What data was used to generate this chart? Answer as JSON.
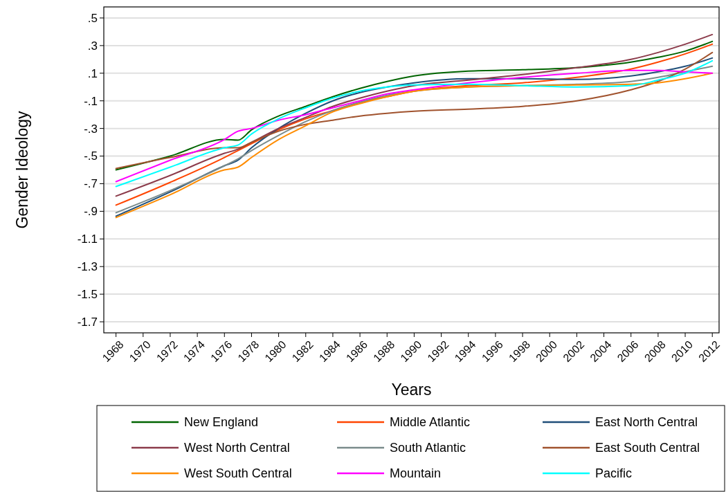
{
  "chart_data": {
    "type": "line",
    "xlabel": "Years",
    "ylabel": "Gender Ideology",
    "xlim": [
      1967.1,
      2012.5
    ],
    "ylim": [
      -1.78,
      0.58
    ],
    "xticks": [
      1968,
      1970,
      1972,
      1974,
      1976,
      1978,
      1980,
      1982,
      1984,
      1986,
      1988,
      1990,
      1992,
      1994,
      1996,
      1998,
      2000,
      2002,
      2004,
      2006,
      2008,
      2010,
      2012
    ],
    "yticks": [
      {
        "value": 0.5,
        "label": ".5"
      },
      {
        "value": 0.3,
        "label": ".3"
      },
      {
        "value": 0.1,
        "label": ".1"
      },
      {
        "value": -0.1,
        "label": "-.1"
      },
      {
        "value": -0.3,
        "label": "-.3"
      },
      {
        "value": -0.5,
        "label": "-.5"
      },
      {
        "value": -0.7,
        "label": "-.7"
      },
      {
        "value": -0.9,
        "label": "-.9"
      },
      {
        "value": -1.1,
        "label": "-1.1"
      },
      {
        "value": -1.3,
        "label": "-1.3"
      },
      {
        "value": -1.5,
        "label": "-1.5"
      },
      {
        "value": -1.7,
        "label": "-1.7"
      }
    ],
    "grid": "y",
    "legend": "bottom",
    "line_style": "solid",
    "x": [
      1968,
      1972,
      1976,
      1977,
      1978,
      1980,
      1982,
      1984,
      1986,
      1988,
      1990,
      1994,
      1998,
      2002,
      2006,
      2008,
      2010,
      2012
    ],
    "series": [
      {
        "name": "New England",
        "color": "#006400",
        "values": [
          -0.6,
          -0.5,
          -0.38,
          -0.385,
          -0.31,
          -0.21,
          -0.14,
          -0.07,
          -0.01,
          0.04,
          0.08,
          0.115,
          0.125,
          0.14,
          0.18,
          0.215,
          0.26,
          0.33
        ]
      },
      {
        "name": "Middle Atlantic",
        "color": "#ff4500",
        "values": [
          -0.855,
          -0.69,
          -0.51,
          -0.46,
          -0.41,
          -0.31,
          -0.23,
          -0.17,
          -0.11,
          -0.07,
          -0.03,
          0.01,
          0.03,
          0.07,
          0.13,
          0.18,
          0.24,
          0.31
        ]
      },
      {
        "name": "East North Central",
        "color": "#1f4e79",
        "values": [
          -0.935,
          -0.76,
          -0.57,
          -0.53,
          -0.44,
          -0.3,
          -0.19,
          -0.1,
          -0.04,
          0.0,
          0.03,
          0.06,
          0.06,
          0.055,
          0.08,
          0.11,
          0.15,
          0.21
        ]
      },
      {
        "name": "West North Central",
        "color": "#8b3a4a",
        "values": [
          -0.79,
          -0.64,
          -0.48,
          -0.45,
          -0.4,
          -0.3,
          -0.22,
          -0.14,
          -0.08,
          -0.03,
          0.01,
          0.05,
          0.09,
          0.14,
          0.2,
          0.25,
          0.31,
          0.38
        ]
      },
      {
        "name": "South Atlantic",
        "color": "#7a8b8b",
        "values": [
          -0.91,
          -0.75,
          -0.57,
          -0.52,
          -0.46,
          -0.35,
          -0.25,
          -0.17,
          -0.11,
          -0.06,
          -0.03,
          0.0,
          0.01,
          0.02,
          0.04,
          0.07,
          0.11,
          0.15
        ]
      },
      {
        "name": "East South Central",
        "color": "#a0522d",
        "values": [
          -0.59,
          -0.51,
          -0.44,
          -0.44,
          -0.4,
          -0.32,
          -0.27,
          -0.24,
          -0.21,
          -0.19,
          -0.175,
          -0.16,
          -0.14,
          -0.1,
          -0.02,
          0.04,
          0.13,
          0.25
        ]
      },
      {
        "name": "West South Central",
        "color": "#ff8c00",
        "values": [
          -0.945,
          -0.78,
          -0.6,
          -0.58,
          -0.51,
          -0.38,
          -0.28,
          -0.18,
          -0.12,
          -0.07,
          -0.03,
          0.0,
          0.01,
          0.015,
          0.02,
          0.03,
          0.06,
          0.1
        ]
      },
      {
        "name": "Mountain",
        "color": "#ff00ff",
        "values": [
          -0.685,
          -0.53,
          -0.38,
          -0.32,
          -0.3,
          -0.24,
          -0.2,
          -0.15,
          -0.1,
          -0.05,
          -0.02,
          0.03,
          0.07,
          0.1,
          0.12,
          0.12,
          0.11,
          0.1
        ]
      },
      {
        "name": "Pacific",
        "color": "#00ffff",
        "values": [
          -0.72,
          -0.58,
          -0.44,
          -0.42,
          -0.34,
          -0.23,
          -0.15,
          -0.08,
          -0.03,
          0.0,
          0.015,
          0.02,
          0.01,
          0.0,
          0.01,
          0.05,
          0.1,
          0.19
        ]
      }
    ]
  }
}
